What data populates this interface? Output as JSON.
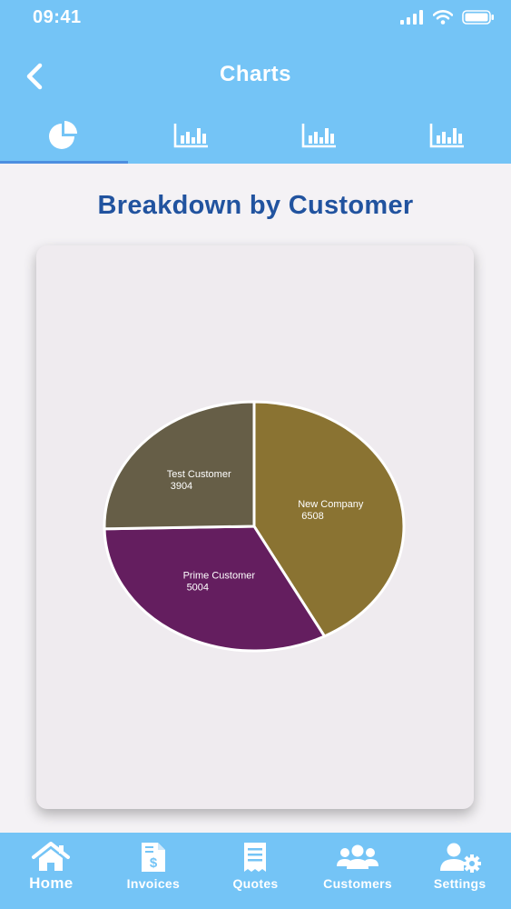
{
  "status_bar": {
    "time": "09:41"
  },
  "header": {
    "title": "Charts",
    "back_icon": "chevron-left-icon"
  },
  "chart_tabs": [
    {
      "icon": "pie-chart-icon",
      "active": true
    },
    {
      "icon": "bar-chart-icon",
      "active": false
    },
    {
      "icon": "bar-chart-icon",
      "active": false
    },
    {
      "icon": "bar-chart-icon",
      "active": false
    }
  ],
  "page": {
    "title": "Breakdown by Customer"
  },
  "chart_data": {
    "type": "pie",
    "title": "Breakdown by Customer",
    "slices": [
      {
        "label": "New Company",
        "value": 6508,
        "color": "#8a7332"
      },
      {
        "label": "Prime Customer",
        "value": 5004,
        "color": "#641e5f"
      },
      {
        "label": "Test Customer",
        "value": 3904,
        "color": "#665e47"
      }
    ]
  },
  "tabbar": {
    "items": [
      {
        "label": "Home",
        "icon": "home-icon"
      },
      {
        "label": "Invoices",
        "icon": "invoice-icon"
      },
      {
        "label": "Quotes",
        "icon": "quotes-icon"
      },
      {
        "label": "Customers",
        "icon": "customers-icon"
      },
      {
        "label": "Settings",
        "icon": "settings-icon"
      }
    ]
  },
  "colors": {
    "header_bg": "#74c4f6",
    "title_color": "#21539f",
    "active_tab_indicator": "#4d8fe0"
  }
}
